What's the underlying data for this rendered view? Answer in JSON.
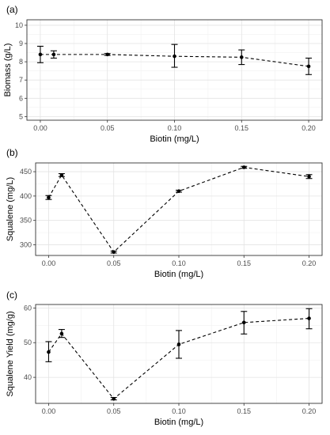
{
  "chart_data": [
    {
      "type": "line",
      "panel_label": "(a)",
      "xlabel": "Biotin (mg/L)",
      "ylabel": "Biomass (g/L)",
      "xlim": [
        -0.01,
        0.21
      ],
      "ylim": [
        4.8,
        10.3
      ],
      "xticks": [
        0.0,
        0.05,
        0.1,
        0.15,
        0.2
      ],
      "xtick_labels": [
        "0.00",
        "0.05",
        "0.10",
        "0.15",
        "0.20"
      ],
      "yticks": [
        5,
        6,
        7,
        8,
        9,
        10
      ],
      "ytick_labels": [
        "5",
        "6",
        "7",
        "8",
        "9",
        "10"
      ],
      "grid": true,
      "legend": "none",
      "x": [
        0.0,
        0.01,
        0.05,
        0.1,
        0.15,
        0.2
      ],
      "y": [
        8.4,
        8.4,
        8.4,
        8.3,
        8.25,
        7.75
      ],
      "err_low": [
        7.95,
        8.2,
        8.35,
        7.7,
        7.85,
        7.3
      ],
      "err_high": [
        8.85,
        8.6,
        8.45,
        8.95,
        8.65,
        8.2
      ]
    },
    {
      "type": "line",
      "panel_label": "(b)",
      "xlabel": "Biotin (mg/L)",
      "ylabel": "Squalene (mg/L)",
      "xlim": [
        -0.01,
        0.21
      ],
      "ylim": [
        278,
        468
      ],
      "xticks": [
        0.0,
        0.05,
        0.1,
        0.15,
        0.2
      ],
      "xtick_labels": [
        "0.00",
        "0.05",
        "0.10",
        "0.15",
        "0.20"
      ],
      "yticks": [
        300,
        350,
        400,
        450
      ],
      "ytick_labels": [
        "300",
        "350",
        "400",
        "450"
      ],
      "grid": true,
      "legend": "none",
      "x": [
        0.0,
        0.01,
        0.05,
        0.1,
        0.15,
        0.2
      ],
      "y": [
        397,
        443,
        285,
        410,
        459,
        440
      ],
      "err_low": [
        393,
        440,
        283,
        408,
        457,
        436
      ],
      "err_high": [
        401,
        446,
        287,
        412,
        461,
        444
      ]
    },
    {
      "type": "line",
      "panel_label": "(c)",
      "xlabel": "Biotin (mg/L)",
      "ylabel": "Squalene Yield (mg/g)",
      "xlim": [
        -0.01,
        0.21
      ],
      "ylim": [
        32.5,
        61
      ],
      "xticks": [
        0.0,
        0.05,
        0.1,
        0.15,
        0.2
      ],
      "xtick_labels": [
        "0.00",
        "0.05",
        "0.10",
        "0.15",
        "0.20"
      ],
      "yticks": [
        40,
        50,
        60
      ],
      "ytick_labels": [
        "40",
        "50",
        "60"
      ],
      "grid": true,
      "legend": "none",
      "x": [
        0.0,
        0.01,
        0.05,
        0.1,
        0.15,
        0.2
      ],
      "y": [
        47.3,
        52.6,
        33.8,
        49.5,
        55.8,
        57.0
      ],
      "err_low": [
        44.5,
        51.5,
        33.5,
        45.5,
        52.5,
        54.0
      ],
      "err_high": [
        50.3,
        53.8,
        34.2,
        53.5,
        59.0,
        59.8
      ]
    }
  ]
}
